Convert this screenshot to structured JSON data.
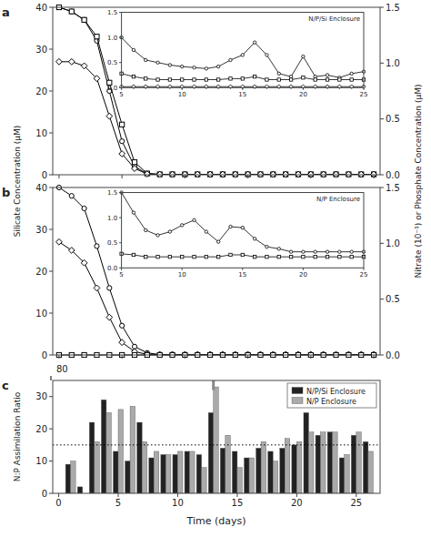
{
  "chart_data": [
    {
      "type": "line",
      "title": "a",
      "x": [
        0,
        1,
        2,
        3,
        4,
        5,
        6,
        7,
        8,
        9,
        10,
        11,
        12,
        13,
        14,
        15,
        16,
        17,
        18,
        19,
        20,
        21,
        22,
        23,
        24,
        25
      ],
      "xlim": [
        -0.5,
        25.5
      ],
      "xticks": [
        0,
        5,
        10,
        15,
        20,
        25
      ],
      "ylim": [
        0,
        40
      ],
      "yticks": [
        0,
        10,
        20,
        30,
        40
      ],
      "y2lim": [
        0,
        1.5
      ],
      "y2ticks": [
        {
          "value": 0,
          "label": "0.0"
        },
        0.5,
        {
          "value": 1,
          "label": "1.0"
        },
        1.5
      ],
      "ylabel": "Silicate Concentration (μM)",
      "y2label": "Nitrate (10⁻¹) or Phosphate Concentration (μM)",
      "tick_labels": "y",
      "grid": false,
      "series": [
        {
          "color": "black",
          "marker": "circle",
          "line_style": "solid",
          "values": [
            40,
            39,
            37,
            32,
            20,
            8,
            2,
            0.2,
            0.1,
            0.1,
            0.1,
            0.1,
            0.1,
            0.1,
            0.1,
            0.1,
            0.1,
            0.1,
            0.1,
            0.1,
            0.1,
            0.1,
            0.1,
            0.1,
            0.1,
            0.1
          ]
        },
        {
          "color": "black",
          "marker": "square",
          "line_style": "solid",
          "values": [
            40,
            39,
            37,
            33,
            22,
            12,
            3,
            0.3,
            0.1,
            0.1,
            0.1,
            0.1,
            0.1,
            0.1,
            0.1,
            0.1,
            0.1,
            0.1,
            0.1,
            0.1,
            0.1,
            0.1,
            0.1,
            0.1,
            0.1,
            0.1
          ]
        },
        {
          "color": "black",
          "marker": "diamond",
          "line_style": "solid",
          "values": [
            27,
            27,
            26,
            23,
            14,
            5,
            1.5,
            0.2,
            0.1,
            0.1,
            0.1,
            0.1,
            0.1,
            0.1,
            0.1,
            0.1,
            0.1,
            0.1,
            0.1,
            0.1,
            0.1,
            0.1,
            0.1,
            0.1,
            0.1,
            0.1
          ]
        }
      ]
    },
    {
      "type": "line",
      "title": "N/P/Si Enclosure",
      "x": [
        5,
        6,
        7,
        8,
        9,
        10,
        11,
        12,
        13,
        14,
        15,
        16,
        17,
        18,
        19,
        20,
        21,
        22,
        23,
        24,
        25
      ],
      "xlim": [
        5,
        25
      ],
      "xticks": [
        5,
        10,
        15,
        20,
        25
      ],
      "ylim": [
        0,
        1.5
      ],
      "yticks": [
        {
          "value": 0,
          "label": "0.0"
        },
        0.5,
        {
          "value": 1,
          "label": "1.0"
        },
        1.5
      ],
      "grid": false,
      "series": [
        {
          "color": "black",
          "marker": "circle",
          "line_style": "solid",
          "values": [
            1.0,
            0.75,
            0.55,
            0.5,
            0.45,
            0.42,
            0.4,
            0.38,
            0.42,
            0.55,
            0.65,
            0.9,
            0.65,
            0.28,
            0.22,
            0.62,
            0.22,
            0.25,
            0.2,
            0.28,
            0.32
          ]
        },
        {
          "color": "black",
          "marker": "square",
          "line_style": "solid",
          "values": [
            0.28,
            0.22,
            0.18,
            0.16,
            0.16,
            0.16,
            0.16,
            0.16,
            0.16,
            0.18,
            0.18,
            0.22,
            0.16,
            0.16,
            0.16,
            0.2,
            0.16,
            0.16,
            0.16,
            0.16,
            0.16
          ]
        },
        {
          "color": "black",
          "marker": "diamond",
          "line_style": "solid",
          "values": [
            0.02,
            0.02,
            0.02,
            0.02,
            0.02,
            0.02,
            0.02,
            0.02,
            0.02,
            0.02,
            0.02,
            0.02,
            0.02,
            0.02,
            0.02,
            0.02,
            0.02,
            0.02,
            0.02,
            0.02,
            0.02
          ]
        }
      ]
    },
    {
      "type": "line",
      "title": "b",
      "x": [
        0,
        1,
        2,
        3,
        4,
        5,
        6,
        7,
        8,
        9,
        10,
        11,
        12,
        13,
        14,
        15,
        16,
        17,
        18,
        19,
        20,
        21,
        22,
        23,
        24,
        25
      ],
      "xlim": [
        -0.5,
        25.5
      ],
      "xticks": [
        0,
        5,
        10,
        15,
        20,
        25
      ],
      "ylim": [
        0,
        40
      ],
      "yticks": [
        0,
        10,
        20,
        30,
        40
      ],
      "y2lim": [
        0,
        1.5
      ],
      "y2ticks": [
        {
          "value": 0,
          "label": "0.0"
        },
        0.5,
        {
          "value": 1,
          "label": "1.0"
        },
        1.5
      ],
      "tick_labels": "y",
      "grid": false,
      "series": [
        {
          "color": "black",
          "marker": "circle",
          "line_style": "solid",
          "values": [
            40,
            38,
            35,
            26,
            16,
            7,
            2,
            0.5,
            0.1,
            0.1,
            0.1,
            0.1,
            0.1,
            0.1,
            0.1,
            0.1,
            0.1,
            0.1,
            0.1,
            0.1,
            0.1,
            0.1,
            0.1,
            0.1,
            0.1,
            0.1
          ]
        },
        {
          "color": "black",
          "marker": "diamond",
          "line_style": "solid",
          "values": [
            27,
            25,
            22,
            16,
            9,
            3,
            0.8,
            0.15,
            0.1,
            0.1,
            0.1,
            0.1,
            0.1,
            0.1,
            0.1,
            0.1,
            0.1,
            0.1,
            0.1,
            0.1,
            0.1,
            0.1,
            0.1,
            0.1,
            0.1,
            0.1
          ]
        },
        {
          "color": "black",
          "marker": "square",
          "line_style": "solid",
          "values": [
            0,
            0,
            0,
            0,
            0,
            0,
            0,
            0,
            0,
            0,
            0,
            0,
            0,
            0,
            0,
            0,
            0,
            0,
            0,
            0,
            0,
            0,
            0,
            0,
            0,
            0
          ]
        }
      ]
    },
    {
      "type": "line",
      "title": "N/P Enclosure",
      "x": [
        5,
        6,
        7,
        8,
        9,
        10,
        11,
        12,
        13,
        14,
        15,
        16,
        17,
        18,
        19,
        20,
        21,
        22,
        23,
        24,
        25
      ],
      "xlim": [
        5,
        25
      ],
      "xticks": [
        5,
        10,
        15,
        20,
        25
      ],
      "ylim": [
        0,
        1.5
      ],
      "yticks": [
        {
          "value": 0,
          "label": "0.0"
        },
        0.5,
        {
          "value": 1,
          "label": "1.0"
        },
        1.5
      ],
      "grid": false,
      "series": [
        {
          "color": "black",
          "marker": "circle",
          "line_style": "solid",
          "values": [
            1.5,
            1.1,
            0.75,
            0.65,
            0.72,
            0.85,
            0.95,
            0.72,
            0.52,
            0.82,
            0.8,
            0.58,
            0.42,
            0.38,
            0.32,
            0.32,
            0.32,
            0.32,
            0.32,
            0.32,
            0.32
          ]
        },
        {
          "color": "black",
          "marker": "square",
          "line_style": "solid",
          "values": [
            0.28,
            0.26,
            0.22,
            0.22,
            0.22,
            0.22,
            0.22,
            0.22,
            0.22,
            0.26,
            0.26,
            0.22,
            0.22,
            0.22,
            0.22,
            0.22,
            0.22,
            0.22,
            0.22,
            0.22,
            0.22
          ]
        }
      ]
    },
    {
      "type": "bar",
      "title": "c",
      "x": [
        1,
        2,
        3,
        4,
        5,
        6,
        7,
        8,
        9,
        10,
        11,
        12,
        13,
        14,
        15,
        16,
        17,
        18,
        19,
        20,
        21,
        22,
        23,
        24,
        25,
        26
      ],
      "xlim": [
        -0.5,
        27
      ],
      "xticks": [
        0,
        5,
        10,
        15,
        20,
        25
      ],
      "ylim": [
        0,
        35
      ],
      "yticks": [
        0,
        10,
        20,
        30
      ],
      "xlabel": "Time (days)",
      "ylabel": "N:P Assimilation Ratio",
      "legend": "upper right",
      "grid": false,
      "hline": 15,
      "annotations": [
        "80"
      ],
      "outlier_mark": {
        "x": 13,
        "y": [
          32,
          35
        ]
      },
      "series": [
        {
          "name": "N/P/Si Enclosure",
          "color": "#222222",
          "values": [
            9,
            2,
            22,
            29,
            13,
            10,
            22,
            11,
            12,
            12,
            13,
            12,
            25,
            14,
            13,
            11,
            14,
            13,
            14,
            15,
            25,
            18,
            19,
            11,
            18,
            16
          ]
        },
        {
          "name": "N/P Enclosure",
          "color": "#aaaaaa",
          "values": [
            10,
            0,
            16,
            25,
            26,
            27,
            16,
            13,
            12,
            13,
            13,
            8,
            33,
            18,
            8,
            11,
            16,
            10,
            17,
            16,
            19,
            19,
            19,
            12,
            19,
            13
          ]
        }
      ]
    }
  ]
}
